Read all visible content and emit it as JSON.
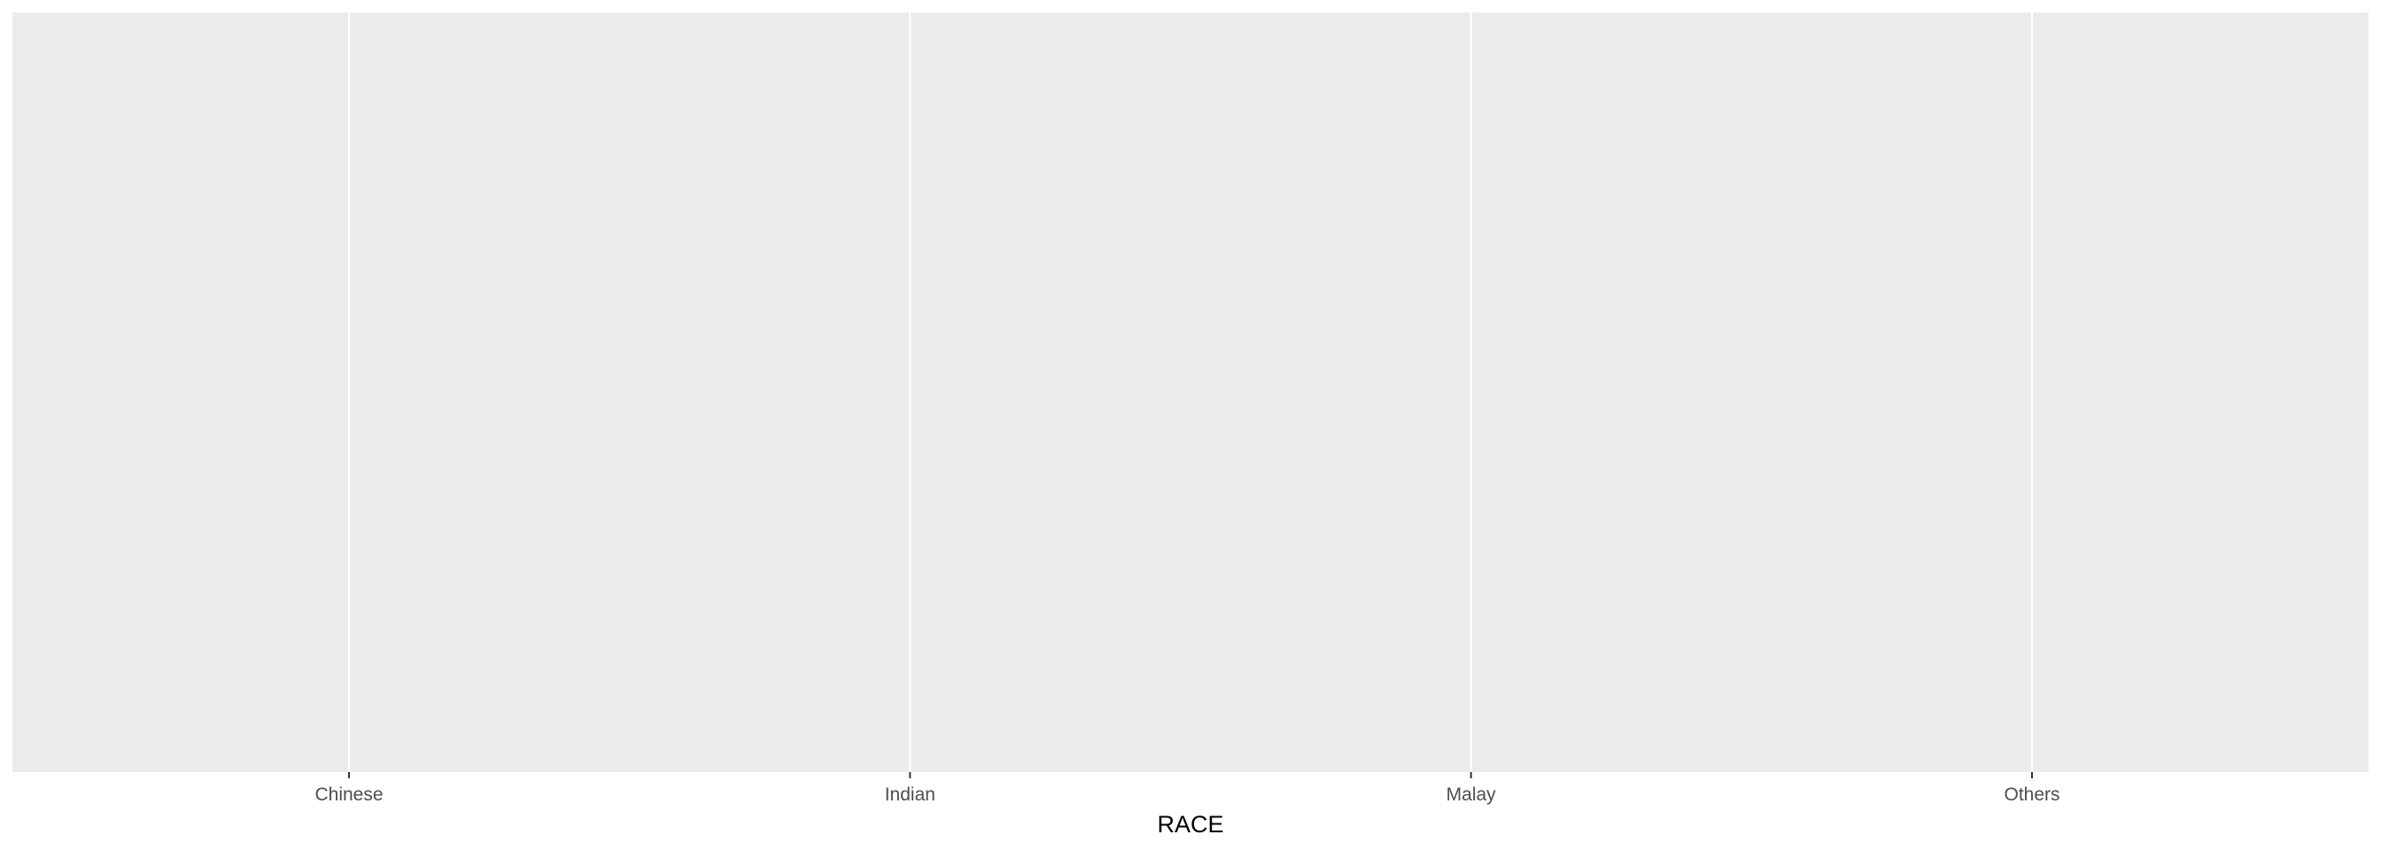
{
  "chart_data": {
    "type": "bar",
    "title": "",
    "xlabel": "RACE",
    "ylabel": "",
    "categories": [
      "Chinese",
      "Indian",
      "Malay",
      "Others"
    ],
    "series": [],
    "grid": true,
    "legend": "none",
    "colors": {
      "panel_background": "#ebebeb",
      "grid_line": "#ffffff",
      "tick_mark": "#333333",
      "tick_text": "#4d4d4d",
      "axis_title": "#000000"
    }
  }
}
